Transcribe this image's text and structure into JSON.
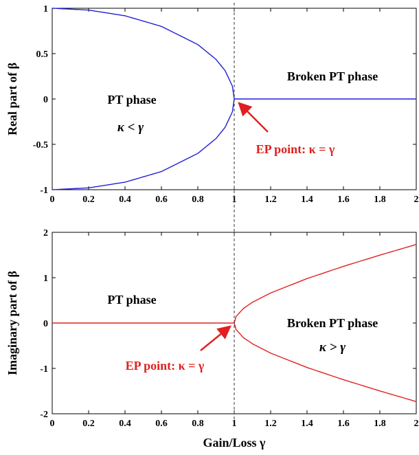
{
  "figure": {
    "shared_xlabel": "Gain/Loss γ",
    "phase_divider_x": 1
  },
  "chart_data": [
    {
      "type": "line",
      "ylabel": "Real part of β",
      "xlim": [
        0,
        2
      ],
      "ylim": [
        -1,
        1
      ],
      "xticks": [
        "0",
        "0.2",
        "0.4",
        "0.6",
        "0.8",
        "1",
        "1.2",
        "1.4",
        "1.6",
        "1.8",
        "2"
      ],
      "yticks": [
        "-1",
        "-0.5",
        "0",
        "0.5",
        "1"
      ],
      "color": "#1f1fd6",
      "series": [
        {
          "x": [
            0,
            0.2,
            0.4,
            0.6,
            0.8,
            0.9,
            0.95,
            0.99,
            1.0
          ],
          "y": [
            1.0,
            0.98,
            0.917,
            0.8,
            0.6,
            0.436,
            0.312,
            0.141,
            0.0
          ]
        },
        {
          "x": [
            0,
            0.2,
            0.4,
            0.6,
            0.8,
            0.9,
            0.95,
            0.99,
            1.0
          ],
          "y": [
            -1.0,
            -0.98,
            -0.917,
            -0.8,
            -0.6,
            -0.436,
            -0.312,
            -0.141,
            0.0
          ]
        },
        {
          "x": [
            1.0,
            2.0
          ],
          "y": [
            0,
            0
          ]
        }
      ],
      "annotations": {
        "left_phase": "PT phase",
        "left_condition": "κ < γ",
        "right_phase": "Broken PT phase",
        "ep_label": "EP point: κ = γ"
      }
    },
    {
      "type": "line",
      "ylabel": "Imaginary part of β",
      "xlim": [
        0,
        2
      ],
      "ylim": [
        -2,
        2
      ],
      "xticks": [
        "0",
        "0.2",
        "0.4",
        "0.6",
        "0.8",
        "1",
        "1.2",
        "1.4",
        "1.6",
        "1.8",
        "2"
      ],
      "yticks": [
        "-2",
        "-1",
        "0",
        "1",
        "2"
      ],
      "color": "#e02020",
      "series": [
        {
          "x": [
            0,
            1.0
          ],
          "y": [
            0,
            0
          ]
        },
        {
          "x": [
            1.0,
            1.01,
            1.05,
            1.1,
            1.2,
            1.4,
            1.6,
            1.8,
            2.0
          ],
          "y": [
            0.0,
            0.142,
            0.32,
            0.458,
            0.663,
            0.98,
            1.249,
            1.497,
            1.732
          ]
        },
        {
          "x": [
            1.0,
            1.01,
            1.05,
            1.1,
            1.2,
            1.4,
            1.6,
            1.8,
            2.0
          ],
          "y": [
            0.0,
            -0.142,
            -0.32,
            -0.458,
            -0.663,
            -0.98,
            -1.249,
            -1.497,
            -1.732
          ]
        }
      ],
      "annotations": {
        "left_phase": "PT phase",
        "right_phase": "Broken PT phase",
        "right_condition": "κ > γ",
        "ep_label": "EP point: κ = γ"
      }
    }
  ]
}
